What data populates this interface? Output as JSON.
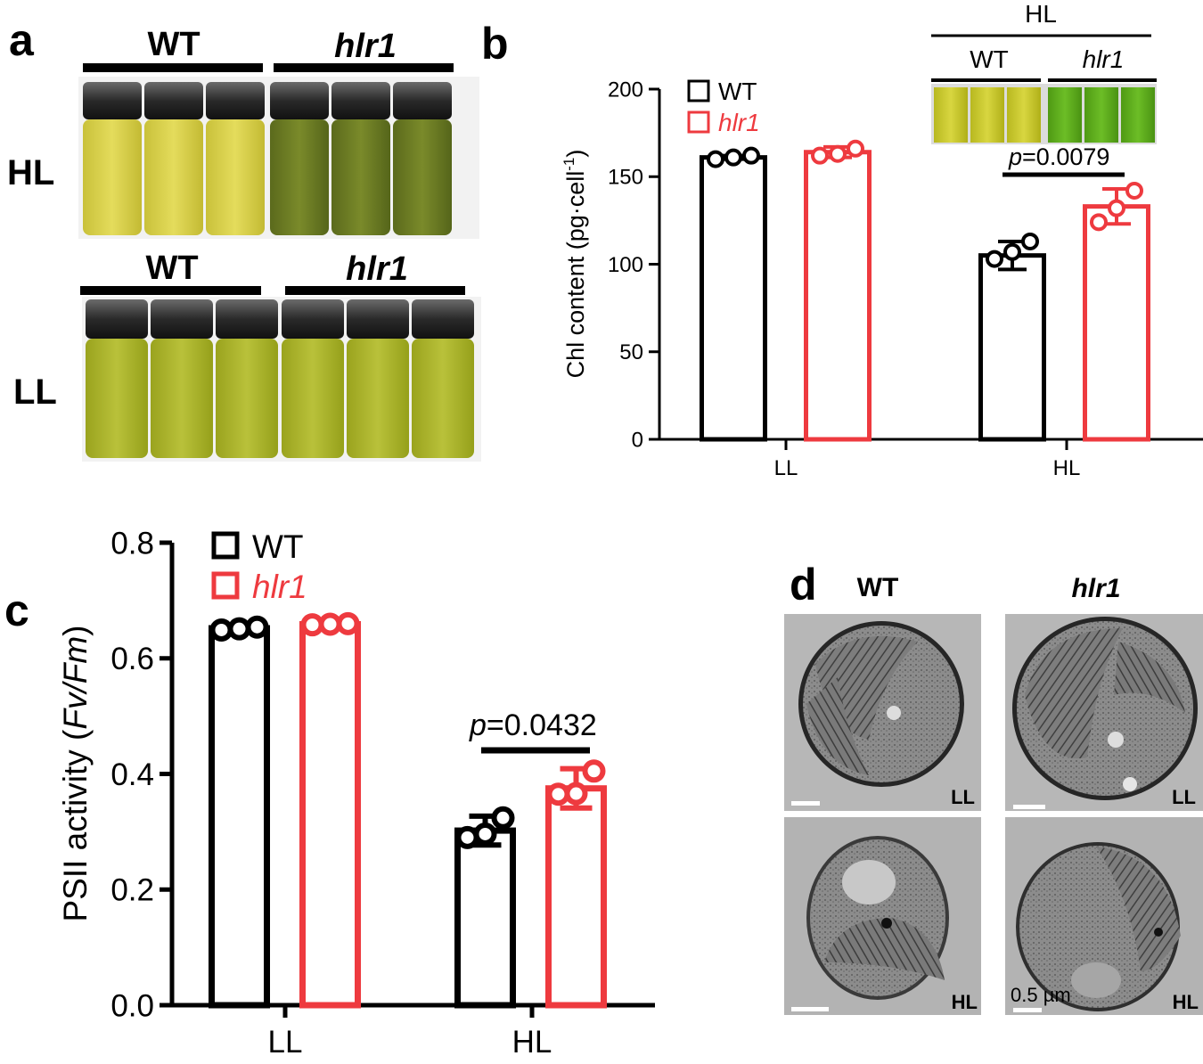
{
  "panel_labels": {
    "a": "a",
    "b": "b",
    "c": "c",
    "d": "d"
  },
  "panel_a": {
    "top_group_wt": "WT",
    "top_group_mut": "hlr1",
    "top_condition": "HL",
    "bottom_group_wt": "WT",
    "bottom_group_mut": "hlr1",
    "bottom_condition": "LL"
  },
  "inset": {
    "condition": "HL",
    "wt": "WT",
    "mut": "hlr1"
  },
  "panel_d": {
    "wt_label": "WT",
    "mut_label": "hlr1",
    "ll": "LL",
    "hl": "HL",
    "scale_bar": "0.5 µm"
  },
  "colors": {
    "wt": "#000000",
    "mut": "#ee3a3f"
  },
  "chart_data": [
    {
      "id": "b",
      "type": "bar",
      "categories": [
        "LL",
        "HL"
      ],
      "ylabel_main": "Chl content (pg·cell",
      "ylabel_sup": "-1",
      "ylabel_close": ")",
      "ylim": [
        0,
        200
      ],
      "yticks": [
        0,
        50,
        100,
        150,
        200
      ],
      "legend": {
        "wt": "WT",
        "mut": "hlr1",
        "position": "top-left"
      },
      "series": [
        {
          "name": "WT",
          "values": [
            161,
            105
          ],
          "errors": [
            1,
            8
          ],
          "points": [
            [
              160,
              161,
              162
            ],
            [
              103,
              107,
              113
            ]
          ]
        },
        {
          "name": "hlr1",
          "values": [
            164,
            133
          ],
          "errors": [
            3,
            10
          ],
          "points": [
            [
              162,
              163,
              166
            ],
            [
              124,
              132,
              142
            ]
          ]
        }
      ],
      "annotation": {
        "p_italic": "p",
        "p_value": "=0.0079"
      }
    },
    {
      "id": "c",
      "type": "bar",
      "categories": [
        "LL",
        "HL"
      ],
      "ylabel_main": "PSII activity (",
      "ylabel_italic": "Fv/Fm",
      "ylabel_close": ")",
      "ylim": [
        0,
        0.8
      ],
      "yticks": [
        "0.0",
        "0.2",
        "0.4",
        "0.6",
        "0.8"
      ],
      "legend": {
        "wt": "WT",
        "mut": "hlr1",
        "position": "top-left"
      },
      "series": [
        {
          "name": "WT",
          "values": [
            0.652,
            0.302
          ],
          "errors": [
            0.004,
            0.025
          ],
          "points": [
            [
              0.649,
              0.651,
              0.654
            ],
            [
              0.29,
              0.296,
              0.324
            ]
          ]
        },
        {
          "name": "hlr1",
          "values": [
            0.659,
            0.375
          ],
          "errors": [
            0.002,
            0.034
          ],
          "points": [
            [
              0.658,
              0.659,
              0.66
            ],
            [
              0.365,
              0.366,
              0.405
            ]
          ]
        }
      ],
      "annotation": {
        "p_italic": "p",
        "p_value": "=0.0432"
      }
    }
  ]
}
